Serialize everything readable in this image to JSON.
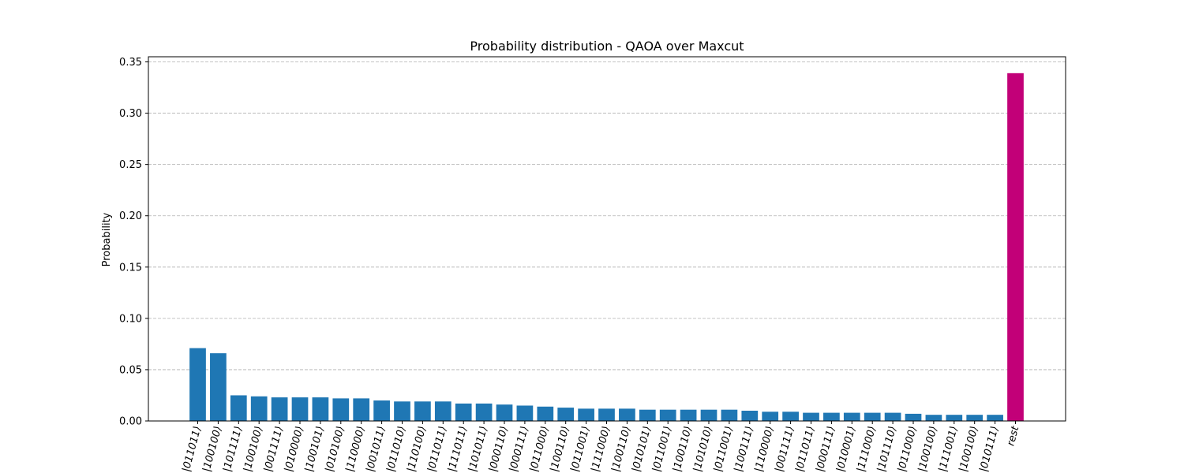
{
  "chart_data": {
    "type": "bar",
    "title": "Probability distribution - QAOA over Maxcut",
    "xlabel": "",
    "ylabel": "Probability",
    "ylim": [
      0,
      0.355
    ],
    "yticks": [
      0.0,
      0.05,
      0.1,
      0.15,
      0.2,
      0.25,
      0.3,
      0.35
    ],
    "grid": "y-dashed",
    "categories": [
      "|011011⟩",
      "|100100⟩",
      "|101111⟩",
      "|100100⟩",
      "|001111⟩",
      "|010000⟩",
      "|100101⟩",
      "|010100⟩",
      "|110000⟩",
      "|001011⟩",
      "|011010⟩",
      "|110100⟩",
      "|011011⟩",
      "|111011⟩",
      "|101011⟩",
      "|000110⟩",
      "|000111⟩",
      "|011000⟩",
      "|100110⟩",
      "|011001⟩",
      "|111000⟩",
      "|100110⟩",
      "|010101⟩",
      "|011001⟩",
      "|100110⟩",
      "|101010⟩",
      "|011001⟩",
      "|100111⟩",
      "|110000⟩",
      "|001111⟩",
      "|011011⟩",
      "|000111⟩",
      "|010001⟩",
      "|111000⟩",
      "|101110⟩",
      "|011000⟩",
      "|100100⟩",
      "|111001⟩",
      "|100100⟩",
      "|010111⟩",
      "rest"
    ],
    "values": [
      0.071,
      0.066,
      0.025,
      0.024,
      0.023,
      0.023,
      0.023,
      0.022,
      0.022,
      0.02,
      0.019,
      0.019,
      0.019,
      0.017,
      0.017,
      0.016,
      0.015,
      0.014,
      0.013,
      0.012,
      0.012,
      0.012,
      0.011,
      0.011,
      0.011,
      0.011,
      0.011,
      0.01,
      0.009,
      0.009,
      0.008,
      0.008,
      0.008,
      0.008,
      0.008,
      0.007,
      0.006,
      0.006,
      0.006,
      0.006,
      0.339
    ],
    "colors": {
      "bar": "#1f77b4",
      "rest": "#c20078",
      "grid": "#b0b0b0",
      "axis": "#000000"
    }
  }
}
